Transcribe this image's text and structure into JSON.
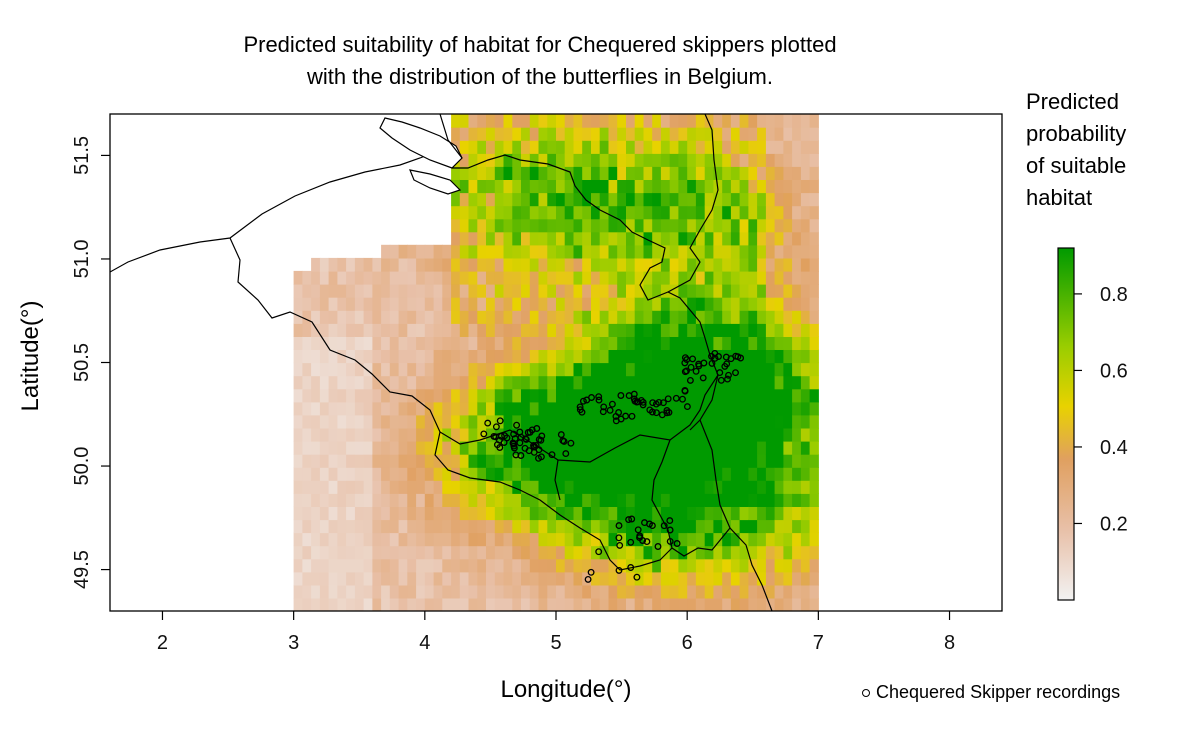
{
  "title_line1": "Predicted suitability of habitat for Chequered skippers plotted",
  "title_line2": "with the distribution of the butterflies in Belgium.",
  "legend": {
    "title_lines": [
      "Predicted",
      "probability",
      "of suitable",
      "habitat"
    ],
    "ticks": [
      "0.8",
      "0.6",
      "0.4",
      "0.2"
    ],
    "tick_values": [
      0.8,
      0.6,
      0.4,
      0.2
    ],
    "range": [
      0,
      0.92
    ],
    "color_stops": [
      "#f2f2f2",
      "#e8c0a8",
      "#e0a060",
      "#e8d200",
      "#9acd00",
      "#009a00"
    ]
  },
  "points_legend": "Chequered Skipper recordings",
  "chart_data": {
    "type": "heatmap",
    "xlabel": "Longitude(°)",
    "ylabel": "Latitude(°)",
    "xlim": [
      1.6,
      8.4
    ],
    "ylim": [
      49.3,
      51.7
    ],
    "xticks": [
      "2",
      "3",
      "4",
      "5",
      "6",
      "7",
      "8"
    ],
    "xtick_values": [
      2,
      3,
      4,
      5,
      6,
      7,
      8
    ],
    "yticks": [
      "49.5",
      "50.0",
      "50.5",
      "51.0",
      "51.5"
    ],
    "ytick_values": [
      49.5,
      50.0,
      50.5,
      51.0,
      51.5
    ],
    "raster_extent": {
      "lon": [
        3.0,
        7.0
      ],
      "lat": [
        49.3,
        51.7
      ]
    },
    "recordings_clusters": [
      {
        "lon": 4.65,
        "lat": 50.15,
        "approx_count": 30
      },
      {
        "lon": 4.9,
        "lat": 50.1,
        "approx_count": 20
      },
      {
        "lon": 5.4,
        "lat": 50.28,
        "approx_count": 20
      },
      {
        "lon": 5.8,
        "lat": 50.3,
        "approx_count": 25
      },
      {
        "lon": 6.2,
        "lat": 50.48,
        "approx_count": 30
      },
      {
        "lon": 5.7,
        "lat": 49.68,
        "approx_count": 20
      },
      {
        "lon": 5.45,
        "lat": 49.52,
        "approx_count": 6
      }
    ]
  }
}
